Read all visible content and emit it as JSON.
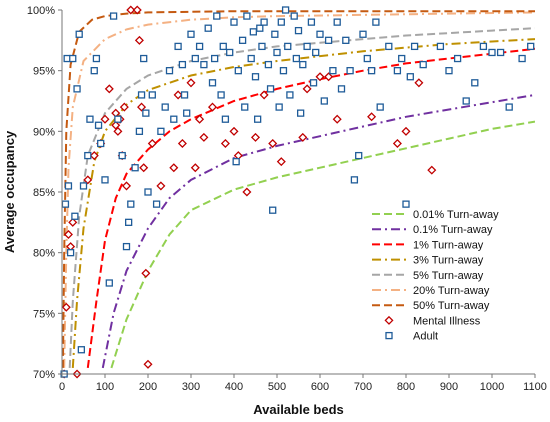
{
  "chart_data": {
    "type": "scatter",
    "xlabel": "Available beds",
    "ylabel": "Average occupancy",
    "xlim": [
      0,
      1100
    ],
    "ylim": [
      70,
      100
    ],
    "x_ticks": [
      0,
      100,
      200,
      300,
      400,
      500,
      600,
      700,
      800,
      900,
      1000,
      1100
    ],
    "y_ticks": [
      70,
      75,
      80,
      85,
      90,
      95,
      100
    ],
    "y_tick_labels": [
      "70%",
      "75%",
      "80%",
      "85%",
      "90%",
      "95%",
      "100%"
    ],
    "grid": false,
    "legend_position": "bottom-right",
    "curves": [
      {
        "name": "0.01% Turn-away",
        "color": "#92d050",
        "dash": "dash",
        "points": [
          [
            115,
            70.5
          ],
          [
            150,
            74.5
          ],
          [
            200,
            78.5
          ],
          [
            250,
            81.5
          ],
          [
            300,
            83.5
          ],
          [
            400,
            85.2
          ],
          [
            500,
            86.2
          ],
          [
            600,
            87
          ],
          [
            700,
            87.8
          ],
          [
            800,
            88.6
          ],
          [
            900,
            89.4
          ],
          [
            1000,
            90.2
          ],
          [
            1100,
            90.8
          ]
        ]
      },
      {
        "name": "0.1% Turn-away",
        "color": "#7030a0",
        "dash": "dashdot",
        "points": [
          [
            95,
            70.5
          ],
          [
            120,
            75
          ],
          [
            150,
            78.5
          ],
          [
            200,
            82
          ],
          [
            250,
            84.5
          ],
          [
            300,
            86
          ],
          [
            400,
            87.8
          ],
          [
            500,
            88.8
          ],
          [
            600,
            89.6
          ],
          [
            700,
            90.4
          ],
          [
            800,
            91.2
          ],
          [
            900,
            91.8
          ],
          [
            1000,
            92.4
          ],
          [
            1100,
            93
          ]
        ]
      },
      {
        "name": "1% Turn-away",
        "color": "#ff0000",
        "dash": "dash",
        "points": [
          [
            60,
            70.5
          ],
          [
            80,
            76
          ],
          [
            100,
            81
          ],
          [
            125,
            84.5
          ],
          [
            150,
            86.5
          ],
          [
            200,
            88.5
          ],
          [
            250,
            90
          ],
          [
            300,
            91
          ],
          [
            400,
            92.5
          ],
          [
            500,
            93.5
          ],
          [
            600,
            94.3
          ],
          [
            700,
            95
          ],
          [
            800,
            95.6
          ],
          [
            900,
            96
          ],
          [
            1000,
            96.4
          ],
          [
            1100,
            96.8
          ]
        ]
      },
      {
        "name": "3% Turn-away",
        "color": "#bf9000",
        "dash": "dashdot",
        "points": [
          [
            25,
            70.5
          ],
          [
            35,
            76
          ],
          [
            50,
            82
          ],
          [
            75,
            87.5
          ],
          [
            100,
            90
          ],
          [
            150,
            92.2
          ],
          [
            200,
            93.4
          ],
          [
            300,
            94.6
          ],
          [
            400,
            95.3
          ],
          [
            500,
            95.8
          ],
          [
            600,
            96.2
          ],
          [
            700,
            96.6
          ],
          [
            800,
            96.9
          ],
          [
            900,
            97.2
          ],
          [
            1000,
            97.4
          ],
          [
            1100,
            97.6
          ]
        ]
      },
      {
        "name": "5% Turn-away",
        "color": "#a6a6a6",
        "dash": "dash",
        "points": [
          [
            18,
            70.5
          ],
          [
            25,
            76
          ],
          [
            40,
            83
          ],
          [
            60,
            88
          ],
          [
            100,
            91.5
          ],
          [
            150,
            93.5
          ],
          [
            200,
            94.6
          ],
          [
            300,
            95.8
          ],
          [
            400,
            96.5
          ],
          [
            500,
            97
          ],
          [
            600,
            97.3
          ],
          [
            700,
            97.6
          ],
          [
            800,
            97.9
          ],
          [
            900,
            98.1
          ],
          [
            1000,
            98.3
          ],
          [
            1100,
            98.5
          ]
        ]
      },
      {
        "name": "20% Turn-away",
        "color": "#f4b183",
        "dash": "dashdot",
        "points": [
          [
            5,
            70.5
          ],
          [
            10,
            80
          ],
          [
            15,
            87
          ],
          [
            25,
            92
          ],
          [
            50,
            95.8
          ],
          [
            100,
            97.6
          ],
          [
            150,
            98.4
          ],
          [
            200,
            98.8
          ],
          [
            300,
            99.2
          ],
          [
            400,
            99.4
          ],
          [
            500,
            99.5
          ],
          [
            700,
            99.6
          ],
          [
            900,
            99.7
          ],
          [
            1100,
            99.8
          ]
        ]
      },
      {
        "name": "50% Turn-away",
        "color": "#c55a11",
        "dash": "dash",
        "points": [
          [
            2,
            70.5
          ],
          [
            5,
            80
          ],
          [
            10,
            90
          ],
          [
            20,
            95.5
          ],
          [
            40,
            98.2
          ],
          [
            70,
            99.2
          ],
          [
            100,
            99.5
          ],
          [
            150,
            99.7
          ],
          [
            200,
            99.8
          ],
          [
            400,
            99.9
          ],
          [
            700,
            99.9
          ],
          [
            1100,
            99.9
          ]
        ]
      }
    ],
    "series": [
      {
        "name": "Mental Illness",
        "marker": "diamond",
        "color": "#c00000",
        "points": [
          [
            5,
            70
          ],
          [
            10,
            75.5
          ],
          [
            15,
            81.5
          ],
          [
            20,
            80.5
          ],
          [
            25,
            82.5
          ],
          [
            35,
            70
          ],
          [
            60,
            86
          ],
          [
            75,
            88
          ],
          [
            90,
            89
          ],
          [
            100,
            91
          ],
          [
            110,
            93.5
          ],
          [
            125,
            90.5
          ],
          [
            125,
            91.5
          ],
          [
            130,
            90
          ],
          [
            135,
            91
          ],
          [
            140,
            88
          ],
          [
            145,
            92
          ],
          [
            150,
            85.5
          ],
          [
            160,
            100
          ],
          [
            175,
            100
          ],
          [
            180,
            97.5
          ],
          [
            185,
            92
          ],
          [
            190,
            87
          ],
          [
            195,
            78.3
          ],
          [
            200,
            70.8
          ],
          [
            210,
            89
          ],
          [
            230,
            85.5
          ],
          [
            260,
            87
          ],
          [
            270,
            93
          ],
          [
            280,
            89
          ],
          [
            300,
            94
          ],
          [
            310,
            87
          ],
          [
            320,
            91
          ],
          [
            330,
            89.5
          ],
          [
            350,
            92
          ],
          [
            380,
            89
          ],
          [
            400,
            90
          ],
          [
            410,
            88
          ],
          [
            430,
            85
          ],
          [
            450,
            89.5
          ],
          [
            470,
            93
          ],
          [
            490,
            89
          ],
          [
            510,
            87.5
          ],
          [
            560,
            89.5
          ],
          [
            570,
            93.5
          ],
          [
            600,
            94.5
          ],
          [
            620,
            94.5
          ],
          [
            640,
            91
          ],
          [
            720,
            91.2
          ],
          [
            780,
            89
          ],
          [
            800,
            90
          ],
          [
            830,
            94
          ],
          [
            860,
            86.8
          ]
        ]
      },
      {
        "name": "Adult",
        "marker": "square",
        "color": "#1f5c99",
        "points": [
          [
            5,
            70
          ],
          [
            8,
            84
          ],
          [
            12,
            96
          ],
          [
            15,
            85.5
          ],
          [
            20,
            80
          ],
          [
            25,
            96
          ],
          [
            30,
            83
          ],
          [
            35,
            93.5
          ],
          [
            40,
            98
          ],
          [
            45,
            72
          ],
          [
            50,
            85.5
          ],
          [
            60,
            88
          ],
          [
            65,
            91
          ],
          [
            75,
            95
          ],
          [
            80,
            96
          ],
          [
            85,
            90.5
          ],
          [
            90,
            89
          ],
          [
            100,
            86
          ],
          [
            110,
            77.5
          ],
          [
            120,
            99.5
          ],
          [
            130,
            91
          ],
          [
            140,
            88
          ],
          [
            150,
            80.5
          ],
          [
            155,
            82.5
          ],
          [
            160,
            84
          ],
          [
            170,
            87
          ],
          [
            180,
            90
          ],
          [
            185,
            93
          ],
          [
            190,
            96
          ],
          [
            195,
            91.5
          ],
          [
            200,
            85
          ],
          [
            210,
            93
          ],
          [
            220,
            84
          ],
          [
            230,
            90
          ],
          [
            240,
            92
          ],
          [
            250,
            95
          ],
          [
            260,
            91
          ],
          [
            270,
            97
          ],
          [
            280,
            95.5
          ],
          [
            285,
            93
          ],
          [
            290,
            91.5
          ],
          [
            300,
            98
          ],
          [
            310,
            96
          ],
          [
            320,
            97
          ],
          [
            330,
            95.5
          ],
          [
            340,
            98.5
          ],
          [
            350,
            94
          ],
          [
            355,
            96
          ],
          [
            360,
            99.5
          ],
          [
            370,
            93
          ],
          [
            375,
            97
          ],
          [
            380,
            91
          ],
          [
            390,
            96.5
          ],
          [
            400,
            99
          ],
          [
            405,
            87.5
          ],
          [
            410,
            95
          ],
          [
            420,
            97.5
          ],
          [
            425,
            92
          ],
          [
            430,
            99.5
          ],
          [
            440,
            96
          ],
          [
            445,
            98.2
          ],
          [
            450,
            94.5
          ],
          [
            455,
            91
          ],
          [
            460,
            98.5
          ],
          [
            465,
            97
          ],
          [
            470,
            99
          ],
          [
            480,
            95.5
          ],
          [
            485,
            93.5
          ],
          [
            490,
            83.5
          ],
          [
            495,
            98
          ],
          [
            500,
            96.5
          ],
          [
            505,
            92
          ],
          [
            510,
            99
          ],
          [
            515,
            95
          ],
          [
            520,
            100
          ],
          [
            525,
            97
          ],
          [
            530,
            93
          ],
          [
            540,
            99.5
          ],
          [
            545,
            96
          ],
          [
            550,
            98.3
          ],
          [
            555,
            91.5
          ],
          [
            560,
            95.5
          ],
          [
            570,
            97
          ],
          [
            580,
            99
          ],
          [
            585,
            94
          ],
          [
            590,
            96.5
          ],
          [
            600,
            98
          ],
          [
            610,
            92.5
          ],
          [
            620,
            97.5
          ],
          [
            630,
            95
          ],
          [
            640,
            99
          ],
          [
            650,
            93.5
          ],
          [
            660,
            97.5
          ],
          [
            670,
            95
          ],
          [
            680,
            86
          ],
          [
            690,
            88
          ],
          [
            700,
            98
          ],
          [
            710,
            96
          ],
          [
            720,
            95
          ],
          [
            730,
            99
          ],
          [
            740,
            92
          ],
          [
            760,
            97
          ],
          [
            780,
            95
          ],
          [
            790,
            96
          ],
          [
            800,
            84
          ],
          [
            810,
            94.5
          ],
          [
            820,
            97
          ],
          [
            840,
            95.5
          ],
          [
            880,
            97
          ],
          [
            900,
            95
          ],
          [
            920,
            96
          ],
          [
            940,
            92.5
          ],
          [
            960,
            94
          ],
          [
            980,
            97
          ],
          [
            1000,
            96.5
          ],
          [
            1020,
            96.5
          ],
          [
            1040,
            92
          ],
          [
            1070,
            96
          ],
          [
            1090,
            97
          ]
        ]
      }
    ]
  }
}
